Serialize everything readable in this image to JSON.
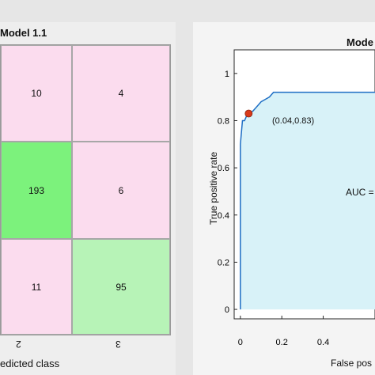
{
  "left_panel": {
    "title": "Model 1.1",
    "matrix": [
      [
        "10",
        "4"
      ],
      [
        "193",
        "6"
      ],
      [
        "11",
        "95"
      ]
    ],
    "x_ticks": [
      "2",
      "3"
    ],
    "x_label": "edicted class"
  },
  "right_panel": {
    "title": "Mode",
    "point_label": "(0.04,0.83)",
    "auc_label": "AUC =",
    "y_label": "True positive rate",
    "x_label": "False pos",
    "colors": {
      "roc_line": "#1f6fc5",
      "fill": "#d8f2f8",
      "marker": "#d83a1a"
    }
  },
  "chart_data": {
    "type": "area",
    "title": "",
    "xlabel": "False pos",
    "ylabel": "True positive rate",
    "xlim": [
      -0.03,
      0.65
    ],
    "ylim": [
      -0.04,
      1.1
    ],
    "x_ticks": [
      "0",
      "0.2",
      "0.4"
    ],
    "y_ticks": [
      "0",
      "0.2",
      "0.4",
      "0.6",
      "0.8",
      "1"
    ],
    "grid": false,
    "series": [
      {
        "x": [
          0,
          0.0,
          0.01,
          0.02,
          0.03,
          0.04,
          0.06,
          0.08,
          0.09,
          0.1,
          0.12,
          0.14,
          0.16,
          0.2,
          0.3,
          0.4,
          0.5,
          0.6
        ],
        "y": [
          0,
          0.7,
          0.8,
          0.8,
          0.82,
          0.83,
          0.84,
          0.86,
          0.87,
          0.88,
          0.89,
          0.9,
          0.92,
          0.92,
          0.92,
          0.92,
          0.92,
          0.92
        ]
      }
    ],
    "marker_point": {
      "x": 0.04,
      "y": 0.83
    }
  }
}
